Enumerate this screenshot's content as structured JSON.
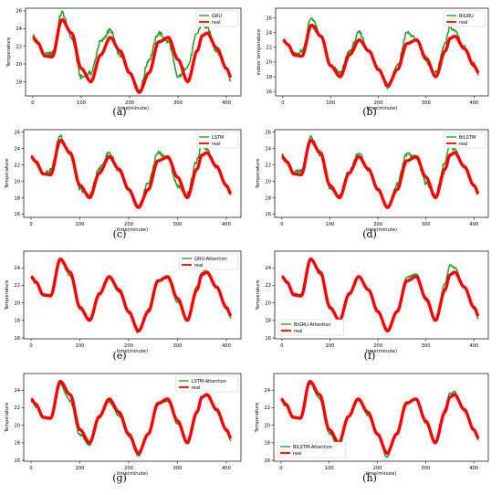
{
  "figure": {
    "panels": [
      {
        "caption": "(a)",
        "model": "GRU",
        "ylabel": "Temperature",
        "xlabel": "time(minute)",
        "legend_pos": "top-right",
        "yticks": [
          "18",
          "20",
          "22",
          "24",
          "26"
        ],
        "ylim": [
          16.4,
          26.3
        ]
      },
      {
        "caption": "(b)",
        "model": "BiGRU",
        "ylabel": "indoor temperature",
        "xlabel": "time(minute)",
        "legend_pos": "top-right",
        "yticks": [
          "16",
          "18",
          "20",
          "22",
          "24",
          "26"
        ],
        "ylim": [
          15.4,
          27.3
        ]
      },
      {
        "caption": "(c)",
        "model": "LSTM",
        "ylabel": "Temperature",
        "xlabel": "time(minute)",
        "legend_pos": "top-right",
        "yticks": [
          "16",
          "18",
          "20",
          "22",
          "24",
          "26"
        ],
        "ylim": [
          15.6,
          26.3
        ]
      },
      {
        "caption": "(d)",
        "model": "BiLSTM",
        "ylabel": "Temperature",
        "xlabel": "time(minute)",
        "legend_pos": "top-right",
        "yticks": [
          "16",
          "18",
          "20",
          "22",
          "24",
          "26"
        ],
        "ylim": [
          15.6,
          26.3
        ]
      },
      {
        "caption": "(e)",
        "model": "GRU-Attention",
        "ylabel": "Temperature",
        "xlabel": "time(minute)",
        "legend_pos": "top-right",
        "yticks": [
          "16",
          "18",
          "20",
          "22",
          "24"
        ],
        "ylim": [
          15.9,
          25.9
        ]
      },
      {
        "caption": "(f)",
        "model": "BiGRU-Attention",
        "ylabel": "Temperature",
        "xlabel": "time(minute)",
        "legend_pos": "bottom-left",
        "yticks": [
          "16",
          "18",
          "20",
          "22",
          "24"
        ],
        "ylim": [
          15.9,
          25.9
        ]
      },
      {
        "caption": "(g)",
        "model": "LSTM-Attention",
        "ylabel": "Temperature",
        "xlabel": "time(minute)",
        "legend_pos": "top-right",
        "yticks": [
          "16",
          "18",
          "20",
          "22",
          "24"
        ],
        "ylim": [
          15.9,
          25.9
        ]
      },
      {
        "caption": "(h)",
        "model": "BiLSTM-Attention",
        "ylabel": "Temperature",
        "xlabel": "time(minute)",
        "legend_pos": "bottom-left",
        "yticks": [
          "16",
          "18",
          "20",
          "22",
          "24"
        ],
        "ylim": [
          15.9,
          25.9
        ]
      }
    ],
    "real_label": "real",
    "xticks": [
      "0",
      "100",
      "200",
      "300",
      "400"
    ]
  },
  "chart_data": [
    {
      "type": "line",
      "xlabel": "time(minute)",
      "ylabel": "Temperature",
      "xlim": [
        -15,
        430
      ],
      "ylim": [
        16.4,
        26.3
      ],
      "legend": "top-right",
      "x": [
        0,
        10,
        25,
        40,
        60,
        80,
        100,
        120,
        140,
        160,
        180,
        200,
        220,
        240,
        260,
        280,
        300,
        320,
        340,
        350,
        360,
        380,
        400,
        410
      ],
      "series": [
        {
          "name": "GRU",
          "color": "#2ca02c",
          "values": [
            23.2,
            22.5,
            21.0,
            21.2,
            25.8,
            23.0,
            18.5,
            19.0,
            22.5,
            23.8,
            21.0,
            19.0,
            17.0,
            20.5,
            23.5,
            22.5,
            18.5,
            19.8,
            23.5,
            24.7,
            24.0,
            21.5,
            19.5,
            18.2
          ]
        },
        {
          "name": "real",
          "color": "#ff0000",
          "values": [
            23.0,
            22.4,
            20.9,
            20.8,
            25.0,
            23.5,
            19.5,
            18.0,
            21.0,
            23.0,
            21.5,
            19.0,
            16.8,
            19.0,
            22.5,
            23.0,
            20.5,
            18.0,
            21.5,
            23.2,
            23.5,
            21.8,
            19.5,
            18.5
          ]
        }
      ]
    },
    {
      "type": "line",
      "xlabel": "time(minute)",
      "ylabel": "indoor temperature",
      "xlim": [
        -15,
        430
      ],
      "ylim": [
        15.4,
        27.3
      ],
      "legend": "top-right",
      "x": [
        0,
        10,
        25,
        40,
        60,
        80,
        100,
        120,
        140,
        160,
        180,
        200,
        220,
        240,
        260,
        280,
        300,
        320,
        340,
        350,
        360,
        380,
        400,
        410
      ],
      "series": [
        {
          "name": "BiGRU",
          "color": "#2ca02c",
          "values": [
            23.2,
            22.2,
            21.0,
            21.5,
            26.0,
            23.5,
            19.5,
            18.5,
            21.5,
            24.0,
            21.5,
            19.0,
            16.5,
            19.5,
            24.0,
            23.0,
            20.0,
            18.5,
            22.5,
            24.8,
            24.2,
            22.0,
            19.8,
            18.0
          ]
        },
        {
          "name": "real",
          "color": "#ff0000",
          "values": [
            23.0,
            22.4,
            20.9,
            20.8,
            25.0,
            23.5,
            19.5,
            18.0,
            21.0,
            23.0,
            21.5,
            19.0,
            16.8,
            19.0,
            22.5,
            23.0,
            20.5,
            18.0,
            21.5,
            23.2,
            23.5,
            21.8,
            19.5,
            18.5
          ]
        }
      ]
    },
    {
      "type": "line",
      "xlabel": "time(minute)",
      "ylabel": "Temperature",
      "xlim": [
        -15,
        430
      ],
      "ylim": [
        15.6,
        26.3
      ],
      "legend": "top-right",
      "x": [
        0,
        10,
        25,
        40,
        60,
        80,
        100,
        120,
        140,
        160,
        180,
        200,
        220,
        240,
        260,
        280,
        300,
        320,
        340,
        350,
        360,
        380,
        400,
        410
      ],
      "series": [
        {
          "name": "LSTM",
          "color": "#2ca02c",
          "values": [
            23.2,
            22.3,
            21.0,
            21.3,
            25.6,
            23.2,
            19.0,
            18.3,
            21.5,
            23.5,
            21.3,
            19.0,
            16.8,
            19.8,
            23.5,
            22.8,
            19.5,
            18.5,
            22.5,
            24.5,
            24.0,
            21.8,
            19.5,
            18.2
          ]
        },
        {
          "name": "real",
          "color": "#ff0000",
          "values": [
            23.0,
            22.4,
            20.9,
            20.8,
            25.0,
            23.5,
            19.5,
            18.0,
            21.0,
            23.0,
            21.5,
            19.0,
            16.8,
            19.0,
            22.5,
            23.0,
            20.5,
            18.0,
            21.5,
            23.2,
            23.5,
            21.8,
            19.5,
            18.5
          ]
        }
      ]
    },
    {
      "type": "line",
      "xlabel": "time(minute)",
      "ylabel": "Temperature",
      "xlim": [
        -15,
        430
      ],
      "ylim": [
        15.6,
        26.3
      ],
      "legend": "top-right",
      "x": [
        0,
        10,
        25,
        40,
        60,
        80,
        100,
        120,
        140,
        160,
        180,
        200,
        220,
        240,
        260,
        280,
        300,
        320,
        340,
        350,
        360,
        380,
        400,
        410
      ],
      "series": [
        {
          "name": "BiLSTM",
          "color": "#2ca02c",
          "values": [
            23.2,
            22.4,
            21.1,
            21.2,
            25.4,
            23.3,
            19.2,
            18.2,
            21.3,
            23.4,
            21.4,
            19.0,
            16.7,
            19.6,
            23.3,
            22.9,
            19.8,
            18.3,
            22.3,
            24.4,
            23.9,
            21.8,
            19.5,
            18.3
          ]
        },
        {
          "name": "real",
          "color": "#ff0000",
          "values": [
            23.0,
            22.4,
            20.9,
            20.8,
            25.0,
            23.5,
            19.5,
            18.0,
            21.0,
            23.0,
            21.5,
            19.0,
            16.8,
            19.0,
            22.5,
            23.0,
            20.5,
            18.0,
            21.5,
            23.2,
            23.5,
            21.8,
            19.5,
            18.5
          ]
        }
      ]
    },
    {
      "type": "line",
      "xlabel": "time(minute)",
      "ylabel": "Temperature",
      "xlim": [
        -15,
        430
      ],
      "ylim": [
        15.9,
        25.9
      ],
      "legend": "top-right",
      "x": [
        0,
        10,
        25,
        40,
        60,
        80,
        100,
        120,
        140,
        160,
        180,
        200,
        220,
        240,
        260,
        280,
        300,
        320,
        340,
        350,
        360,
        380,
        400,
        410
      ],
      "series": [
        {
          "name": "GRU-Attention",
          "color": "#2ca02c",
          "values": [
            22.9,
            22.2,
            20.9,
            20.9,
            24.9,
            23.1,
            19.2,
            18.1,
            21.2,
            22.9,
            21.3,
            18.9,
            16.6,
            19.2,
            22.6,
            22.8,
            20.1,
            18.0,
            21.9,
            23.5,
            23.6,
            21.7,
            19.4,
            18.3
          ]
        },
        {
          "name": "real",
          "color": "#ff0000",
          "values": [
            23.0,
            22.4,
            20.9,
            20.8,
            25.0,
            23.5,
            19.5,
            18.0,
            21.0,
            23.0,
            21.5,
            19.0,
            16.8,
            19.0,
            22.5,
            23.0,
            20.5,
            18.0,
            21.5,
            23.2,
            23.5,
            21.8,
            19.5,
            18.5
          ]
        }
      ]
    },
    {
      "type": "line",
      "xlabel": "time(minute)",
      "ylabel": "Temperature",
      "xlim": [
        -15,
        430
      ],
      "ylim": [
        15.9,
        25.9
      ],
      "legend": "bottom-left",
      "x": [
        0,
        10,
        25,
        40,
        60,
        80,
        100,
        120,
        140,
        160,
        180,
        200,
        220,
        240,
        260,
        280,
        300,
        320,
        340,
        350,
        360,
        380,
        400,
        410
      ],
      "series": [
        {
          "name": "BiGRU-Attention",
          "color": "#2ca02c",
          "values": [
            23.0,
            22.3,
            21.0,
            20.9,
            24.9,
            23.2,
            19.3,
            18.1,
            21.1,
            23.0,
            21.4,
            19.0,
            16.7,
            19.2,
            22.9,
            23.3,
            20.3,
            18.1,
            22.2,
            24.3,
            24.0,
            21.8,
            19.4,
            18.2
          ]
        },
        {
          "name": "real",
          "color": "#ff0000",
          "values": [
            23.0,
            22.4,
            20.9,
            20.8,
            25.0,
            23.5,
            19.5,
            18.0,
            21.0,
            23.0,
            21.5,
            19.0,
            16.8,
            19.0,
            22.5,
            23.0,
            20.5,
            18.0,
            21.5,
            23.2,
            23.5,
            21.8,
            19.5,
            18.5
          ]
        }
      ]
    },
    {
      "type": "line",
      "xlabel": "time(minute)",
      "ylabel": "Temperature",
      "xlim": [
        -15,
        430
      ],
      "ylim": [
        15.9,
        25.9
      ],
      "legend": "top-right",
      "x": [
        0,
        10,
        25,
        40,
        60,
        80,
        100,
        120,
        140,
        160,
        180,
        200,
        220,
        240,
        260,
        280,
        300,
        320,
        340,
        350,
        360,
        380,
        400,
        410
      ],
      "series": [
        {
          "name": "LSTM-Attention",
          "color": "#2ca02c",
          "values": [
            22.8,
            22.1,
            20.8,
            20.8,
            24.7,
            22.8,
            18.9,
            17.8,
            20.9,
            22.7,
            21.1,
            18.8,
            16.5,
            19.0,
            22.4,
            22.8,
            20.2,
            17.9,
            21.6,
            23.3,
            23.4,
            21.6,
            19.3,
            18.3
          ]
        },
        {
          "name": "real",
          "color": "#ff0000",
          "values": [
            23.0,
            22.4,
            20.9,
            20.8,
            25.0,
            23.5,
            19.5,
            18.0,
            21.0,
            23.0,
            21.5,
            19.0,
            16.8,
            19.0,
            22.5,
            23.0,
            20.5,
            18.0,
            21.5,
            23.2,
            23.5,
            21.8,
            19.5,
            18.5
          ]
        }
      ]
    },
    {
      "type": "line",
      "xlabel": "time(minute)",
      "ylabel": "Temperature",
      "xlim": [
        -15,
        430
      ],
      "ylim": [
        15.9,
        25.9
      ],
      "legend": "bottom-left",
      "x": [
        0,
        10,
        25,
        40,
        60,
        80,
        100,
        120,
        140,
        160,
        180,
        200,
        220,
        240,
        260,
        280,
        300,
        320,
        340,
        350,
        360,
        380,
        400,
        410
      ],
      "series": [
        {
          "name": "BiLSTM-Attention",
          "color": "#2ca02c",
          "values": [
            22.9,
            22.2,
            20.9,
            20.8,
            24.8,
            23.0,
            19.1,
            17.6,
            21.0,
            22.9,
            21.2,
            18.9,
            16.4,
            19.1,
            22.6,
            23.0,
            20.3,
            18.0,
            21.8,
            23.6,
            23.8,
            21.7,
            19.4,
            18.3
          ]
        },
        {
          "name": "real",
          "color": "#ff0000",
          "values": [
            23.0,
            22.4,
            20.9,
            20.8,
            25.0,
            23.5,
            19.5,
            18.0,
            21.0,
            23.0,
            21.5,
            19.0,
            16.8,
            19.0,
            22.5,
            23.0,
            20.5,
            18.0,
            21.5,
            23.2,
            23.5,
            21.8,
            19.5,
            18.5
          ]
        }
      ]
    }
  ]
}
